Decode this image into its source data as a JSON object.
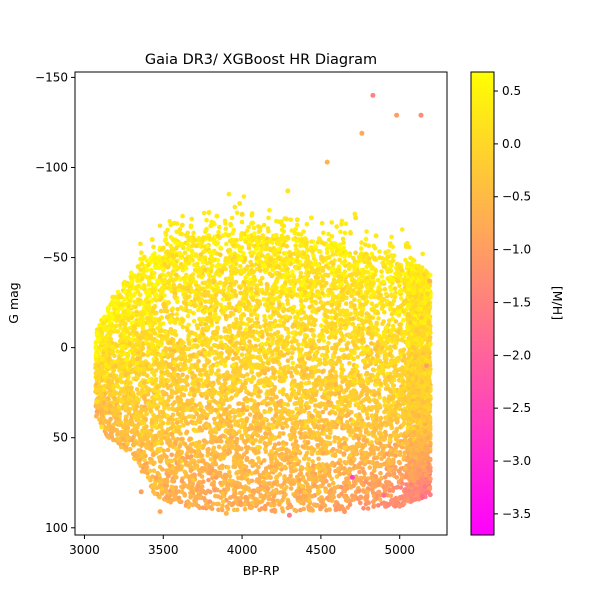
{
  "chart_data": {
    "type": "scatter",
    "title": "Gaia DR3/ XGBoost HR Diagram",
    "xlabel": "BP-RP",
    "ylabel": "G mag",
    "xlim": [
      2940,
      5300
    ],
    "ylim": [
      104,
      -153
    ],
    "y_inverted": true,
    "x_ticks": [
      3000,
      3500,
      4000,
      4500,
      5000
    ],
    "y_ticks": [
      -150,
      -100,
      -50,
      0,
      50,
      100
    ],
    "y_tick_labels": [
      "−150",
      "−100",
      "−50",
      "0",
      "50",
      "100"
    ],
    "colorbar": {
      "label": "[M/H]",
      "range": [
        -3.7,
        0.68
      ],
      "ticks": [
        0.5,
        0.0,
        -0.5,
        -1.0,
        -1.5,
        -2.0,
        -2.5,
        -3.0,
        -3.5
      ],
      "tick_labels": [
        "0.5",
        "0.0",
        "−0.5",
        "−1.0",
        "−1.5",
        "−2.0",
        "−2.5",
        "−3.0",
        "−3.5"
      ],
      "colormap": "spring",
      "color_low": "#ff00ff",
      "color_high": "#ffff00"
    },
    "grid": false,
    "points": [
      {
        "x": 4830,
        "y": -140,
        "mh": -1.5
      },
      {
        "x": 4980,
        "y": -129,
        "mh": -1.0
      },
      {
        "x": 5135,
        "y": -129,
        "mh": -1.3
      },
      {
        "x": 4760,
        "y": -119,
        "mh": -0.8
      },
      {
        "x": 4540,
        "y": -103,
        "mh": -0.6
      },
      {
        "x": 4290,
        "y": -87,
        "mh": 0.2
      },
      {
        "x": 3985,
        "y": -80,
        "mh": 0.3
      },
      {
        "x": 3790,
        "y": -75,
        "mh": 0.3
      },
      {
        "x": 4000,
        "y": -74,
        "mh": 0.1
      },
      {
        "x": 3840,
        "y": -73,
        "mh": 0.4
      },
      {
        "x": 4350,
        "y": -71,
        "mh": 0.3
      },
      {
        "x": 4720,
        "y": -72,
        "mh": 0.2
      },
      {
        "x": 3570,
        "y": -69,
        "mh": 0.3
      },
      {
        "x": 3620,
        "y": -68,
        "mh": 0.2
      },
      {
        "x": 4440,
        "y": -72,
        "mh": 0.4
      },
      {
        "x": 4850,
        "y": -62,
        "mh": 0.3
      },
      {
        "x": 3430,
        "y": -60,
        "mh": 0.3
      },
      {
        "x": 3340,
        "y": -45,
        "mh": 0.2
      },
      {
        "x": 3180,
        "y": -28,
        "mh": 0.3
      },
      {
        "x": 3100,
        "y": -10,
        "mh": 0.2
      },
      {
        "x": 3080,
        "y": 30,
        "mh": 0.1
      },
      {
        "x": 3110,
        "y": 44,
        "mh": 0.2
      },
      {
        "x": 3360,
        "y": 80,
        "mh": -0.9
      },
      {
        "x": 3480,
        "y": 91,
        "mh": -0.8
      },
      {
        "x": 3900,
        "y": 92,
        "mh": -0.6
      },
      {
        "x": 4300,
        "y": 93,
        "mh": -1.6
      },
      {
        "x": 4650,
        "y": 91,
        "mh": -1.1
      },
      {
        "x": 5000,
        "y": 88,
        "mh": -1.2
      },
      {
        "x": 5190,
        "y": 78,
        "mh": -1.0
      },
      {
        "x": 4700,
        "y": 72,
        "mh": -2.6
      },
      {
        "x": 4900,
        "y": 82,
        "mh": -1.8
      },
      {
        "x": 5190,
        "y": -37,
        "mh": -0.5
      },
      {
        "x": 5170,
        "y": 10,
        "mh": -0.9
      },
      {
        "x": 5180,
        "y": 50,
        "mh": -0.7
      }
    ]
  }
}
